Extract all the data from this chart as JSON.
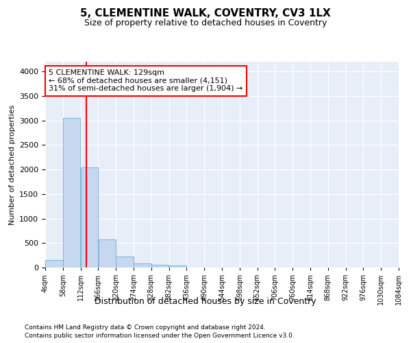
{
  "title": "5, CLEMENTINE WALK, COVENTRY, CV3 1LX",
  "subtitle": "Size of property relative to detached houses in Coventry",
  "xlabel": "Distribution of detached houses by size in Coventry",
  "ylabel": "Number of detached properties",
  "bar_color": "#c5d8f0",
  "bar_edge_color": "#6baed6",
  "background_color": "#e8eef8",
  "grid_color": "#ffffff",
  "vline_x": 129,
  "vline_color": "red",
  "annotation_text": "5 CLEMENTINE WALK: 129sqm\n← 68% of detached houses are smaller (4,151)\n31% of semi-detached houses are larger (1,904) →",
  "annotation_box_color": "white",
  "annotation_box_edge": "red",
  "footnote1": "Contains HM Land Registry data © Crown copyright and database right 2024.",
  "footnote2": "Contains public sector information licensed under the Open Government Licence v3.0.",
  "bin_edges": [
    4,
    58,
    112,
    166,
    220,
    274,
    328,
    382,
    436,
    490,
    544,
    598,
    652,
    706,
    760,
    814,
    868,
    922,
    976,
    1030,
    1084
  ],
  "bar_heights": [
    150,
    3050,
    2050,
    570,
    220,
    80,
    55,
    40,
    0,
    0,
    0,
    0,
    0,
    0,
    0,
    0,
    0,
    0,
    0,
    0
  ],
  "ylim": [
    0,
    4200
  ],
  "yticks": [
    0,
    500,
    1000,
    1500,
    2000,
    2500,
    3000,
    3500,
    4000
  ]
}
